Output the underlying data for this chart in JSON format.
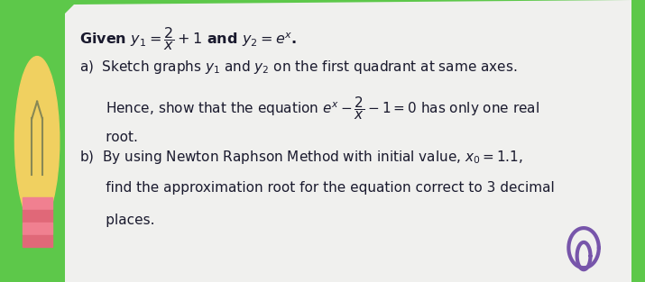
{
  "bg_color_left": "#2ab5b5",
  "bg_color_right": "#5dc84a",
  "paper_color": "#f0f0ee",
  "text_color": "#1a1a2e",
  "line0": "Given $y_1=\\dfrac{2}{x}+1$ and $y_2=e^x$.",
  "line1": "a)  Sketch graphs $y_1$ and $y_2$ on the first quadrant at same axes.",
  "line2": "      Hence, show that the equation $e^x-\\dfrac{2}{x}-1=0$ has only one real",
  "line3": "      root.",
  "line4": "b)  By using Newton Raphson Method with initial value, $x_0=1.1$,",
  "line5": "      find the approximation root for the equation correct to 3 decimal",
  "line6": "      places.",
  "bulb_color": "#f0d060",
  "bulb_base_color": "#f08090",
  "font_size_title": 11.5,
  "font_size_body": 11
}
